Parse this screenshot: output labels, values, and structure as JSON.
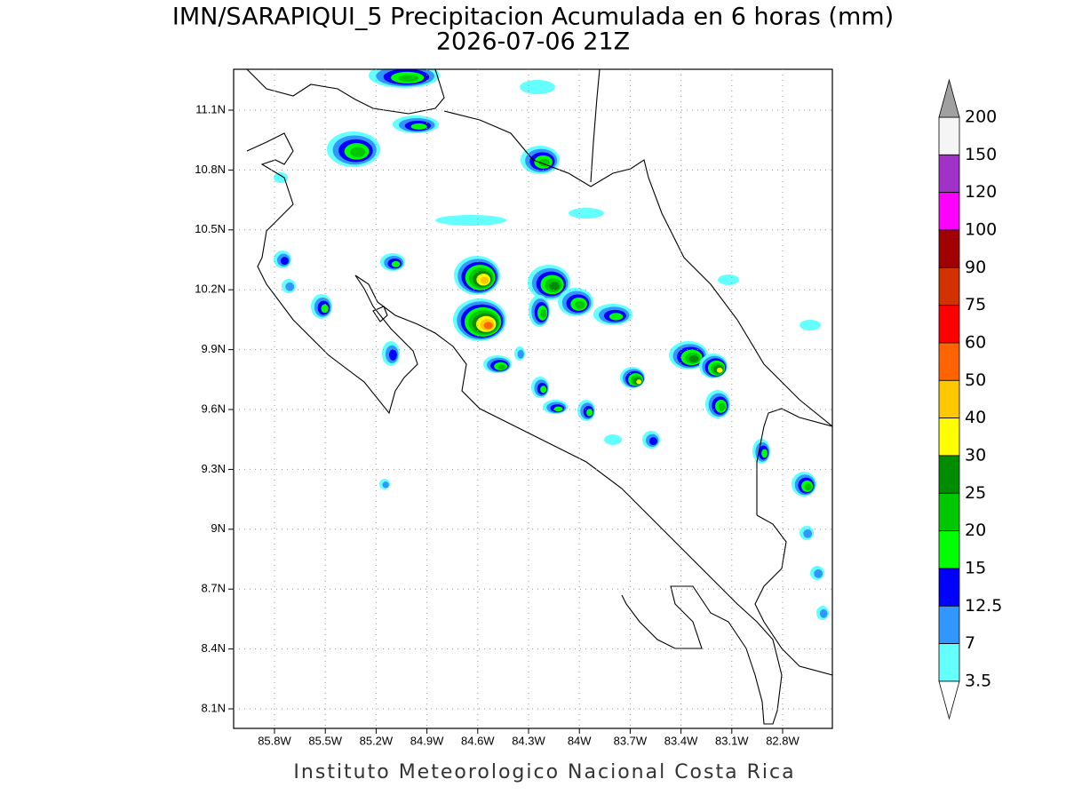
{
  "header": {
    "title": "IMN/SARAPIQUI_5 Precipitacion Acumulada en 6 horas (mm)",
    "subtitle": "2026-07-06 21Z"
  },
  "map": {
    "lon_ticks": [
      "85.8W",
      "85.5W",
      "85.2W",
      "84.9W",
      "84.6W",
      "84.3W",
      "84W",
      "83.7W",
      "83.4W",
      "83.1W",
      "82.8W"
    ],
    "lat_ticks": [
      "11.1N",
      "10.8N",
      "10.5N",
      "10.2N",
      "9.9N",
      "9.6N",
      "9.3N",
      "9N",
      "8.7N",
      "8.4N",
      "8.1N"
    ]
  },
  "colorbar": {
    "levels": [
      200,
      150,
      120,
      100,
      90,
      75,
      60,
      50,
      40,
      30,
      25,
      20,
      15,
      12.5,
      7,
      3.5
    ],
    "colors": [
      "#f5f5f5",
      "#a032c8",
      "#ff00ff",
      "#a00000",
      "#d23200",
      "#ff0000",
      "#ff6400",
      "#ffc800",
      "#ffff00",
      "#008c00",
      "#00c800",
      "#00ff00",
      "#0000ff",
      "#3296ff",
      "#64ffff"
    ],
    "over_color": "#a0a0a0",
    "under_color": "#ffffff"
  },
  "footer": "Instituto Meteorologico Nacional Costa Rica"
}
